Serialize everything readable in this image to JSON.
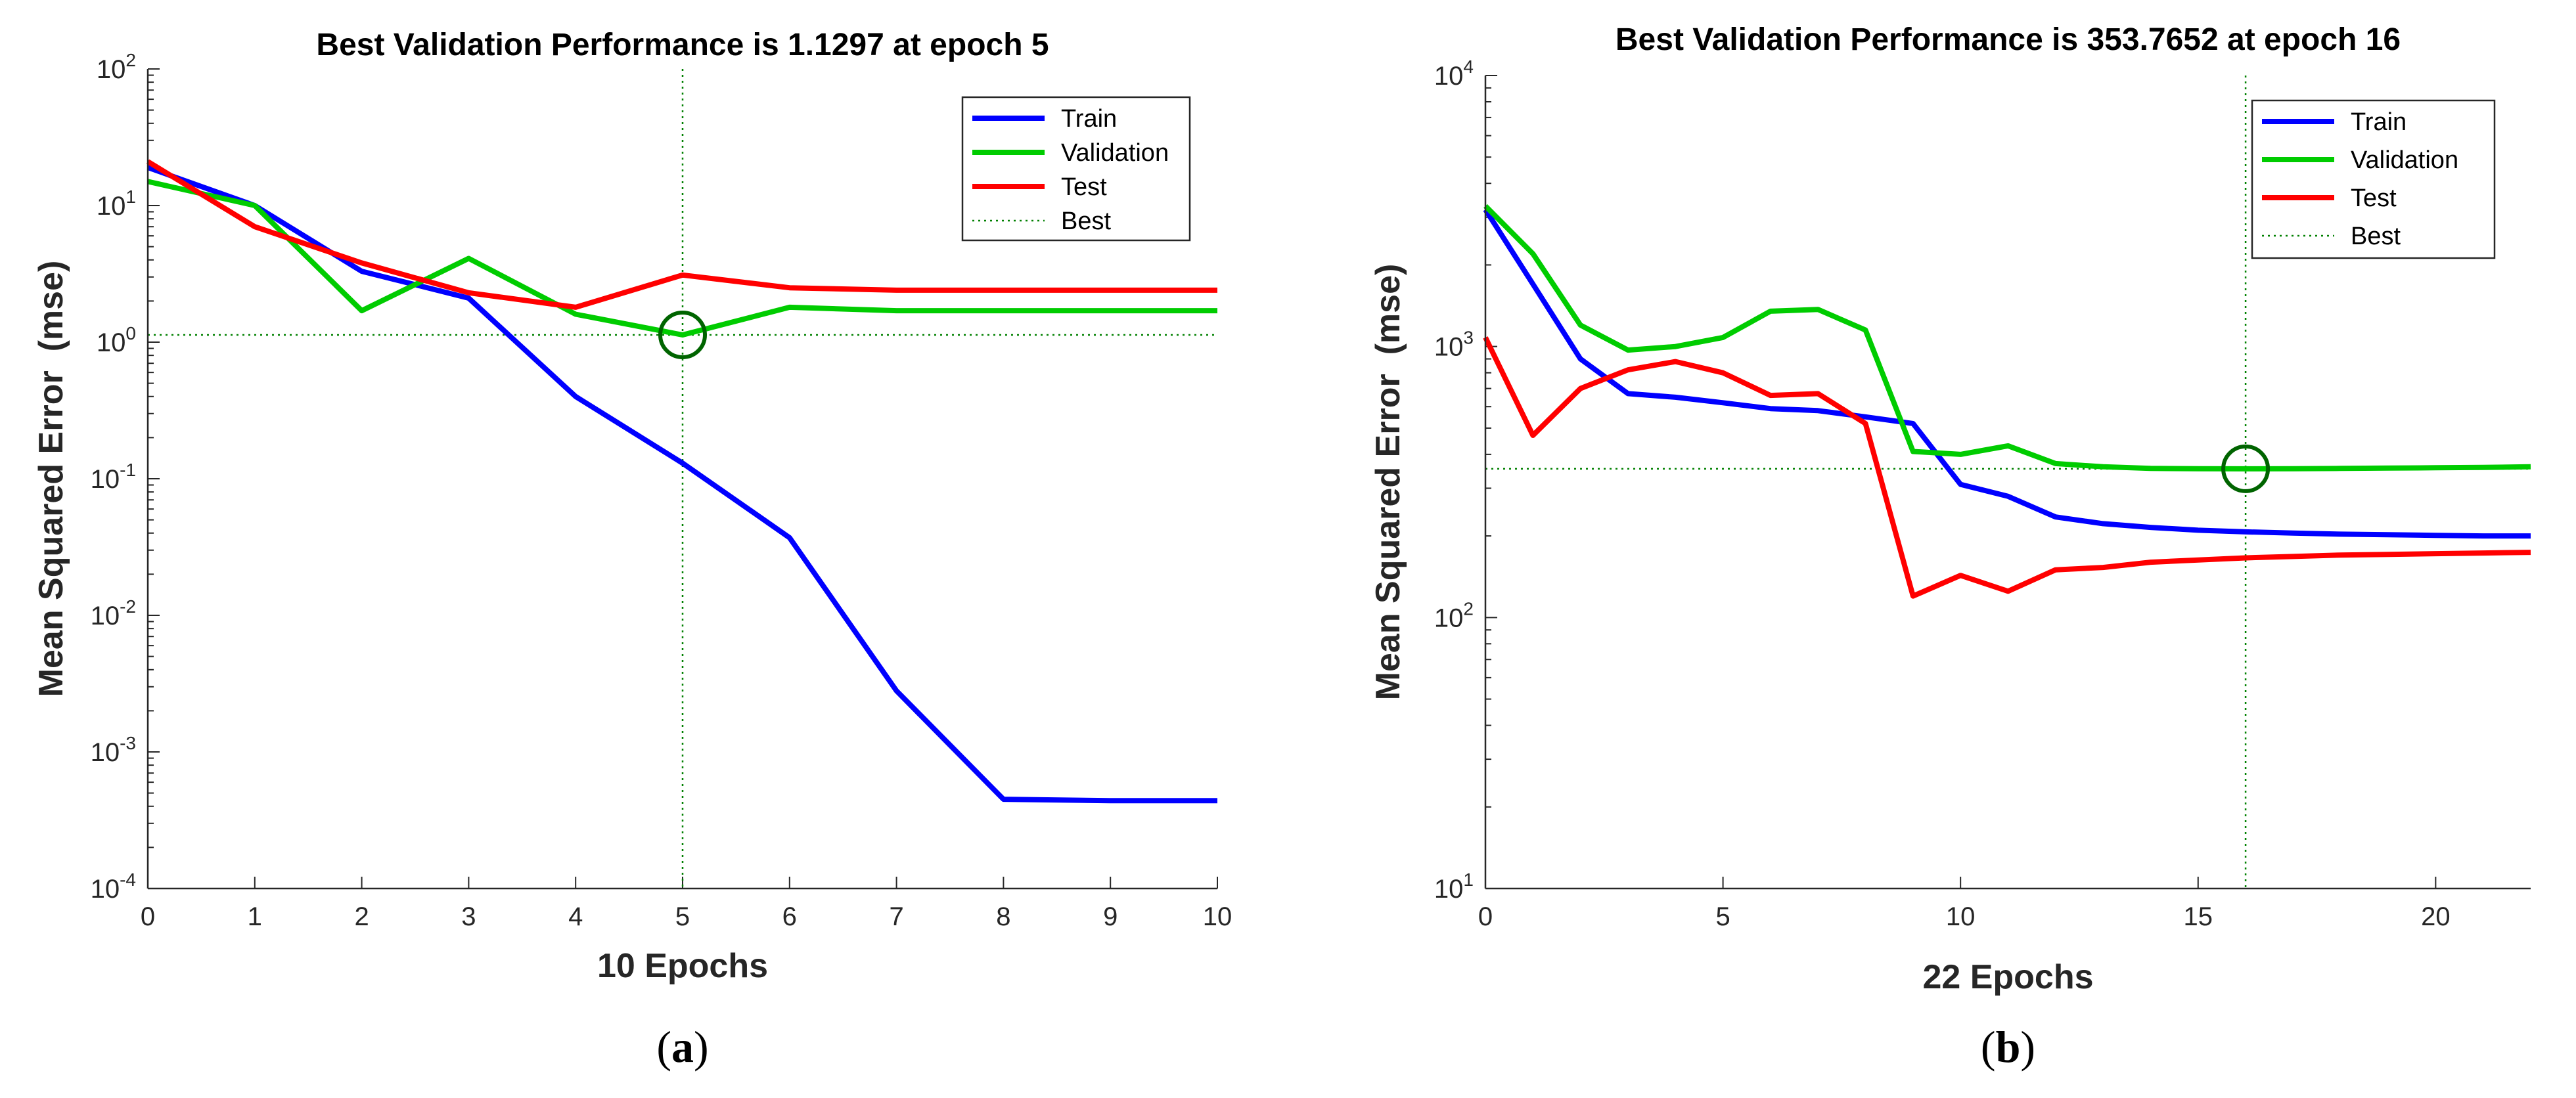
{
  "chart_data": [
    {
      "type": "line",
      "panel_label": "a",
      "title": "Best Validation Performance is 1.1297 at epoch 5",
      "xlabel": "10 Epochs",
      "ylabel": "Mean Squared Error  (mse)",
      "yscale": "log",
      "xlim": [
        0,
        10
      ],
      "ylim_exp": [
        -4,
        2
      ],
      "xticks": [
        0,
        1,
        2,
        3,
        4,
        5,
        6,
        7,
        8,
        9,
        10
      ],
      "yticks_exp": [
        -4,
        -3,
        -2,
        -1,
        0,
        1,
        2
      ],
      "tick_base": "10",
      "legend_position": "top-right",
      "best": {
        "epoch": 5,
        "value": 1.1297
      },
      "x": [
        0,
        1,
        2,
        3,
        4,
        5,
        6,
        7,
        8,
        9,
        10
      ],
      "series": [
        {
          "name": "Train",
          "color": "#0000ff",
          "values": [
            19,
            10,
            3.3,
            2.1,
            0.4,
            0.13,
            0.037,
            0.0028,
            0.00045,
            0.00044,
            0.00044
          ]
        },
        {
          "name": "Validation",
          "color": "#00cc00",
          "values": [
            15,
            10,
            1.7,
            4.1,
            1.6,
            1.1297,
            1.8,
            1.7,
            1.7,
            1.7,
            1.7
          ]
        },
        {
          "name": "Test",
          "color": "#ff0000",
          "values": [
            21,
            7,
            3.8,
            2.3,
            1.8,
            3.1,
            2.5,
            2.4,
            2.4,
            2.4,
            2.4
          ]
        },
        {
          "name": "Best",
          "color": "#008000",
          "style": "dotted"
        }
      ]
    },
    {
      "type": "line",
      "panel_label": "b",
      "title": "Best Validation Performance is 353.7652 at epoch 16",
      "xlabel": "22 Epochs",
      "ylabel": "Mean Squared Error  (mse)",
      "yscale": "log",
      "xlim": [
        0,
        22
      ],
      "ylim_exp": [
        1,
        4
      ],
      "xticks": [
        0,
        5,
        10,
        15,
        20
      ],
      "yticks_exp": [
        1,
        2,
        3,
        4
      ],
      "tick_base": "10",
      "legend_position": "top-right",
      "best": {
        "epoch": 16,
        "value": 353.7652
      },
      "x": [
        0,
        1,
        2,
        3,
        4,
        5,
        6,
        7,
        8,
        9,
        10,
        11,
        12,
        13,
        14,
        15,
        16,
        17,
        18,
        19,
        20,
        21,
        22
      ],
      "series": [
        {
          "name": "Train",
          "color": "#0000ff",
          "values": [
            3200,
            1700,
            900,
            670,
            650,
            620,
            590,
            580,
            550,
            520,
            310,
            280,
            235,
            222,
            215,
            210,
            207,
            205,
            203,
            202,
            201,
            200,
            200
          ]
        },
        {
          "name": "Validation",
          "color": "#00cc00",
          "values": [
            3300,
            2200,
            1200,
            970,
            1000,
            1080,
            1350,
            1370,
            1150,
            410,
            400,
            430,
            370,
            360,
            355,
            354,
            353.7652,
            354,
            355,
            356,
            357,
            358,
            360
          ]
        },
        {
          "name": "Test",
          "color": "#ff0000",
          "values": [
            1080,
            470,
            700,
            820,
            880,
            800,
            660,
            670,
            520,
            120,
            143,
            125,
            150,
            153,
            160,
            163,
            166,
            168,
            170,
            171,
            172,
            173,
            174
          ]
        },
        {
          "name": "Best",
          "color": "#008000",
          "style": "dotted"
        }
      ]
    }
  ]
}
